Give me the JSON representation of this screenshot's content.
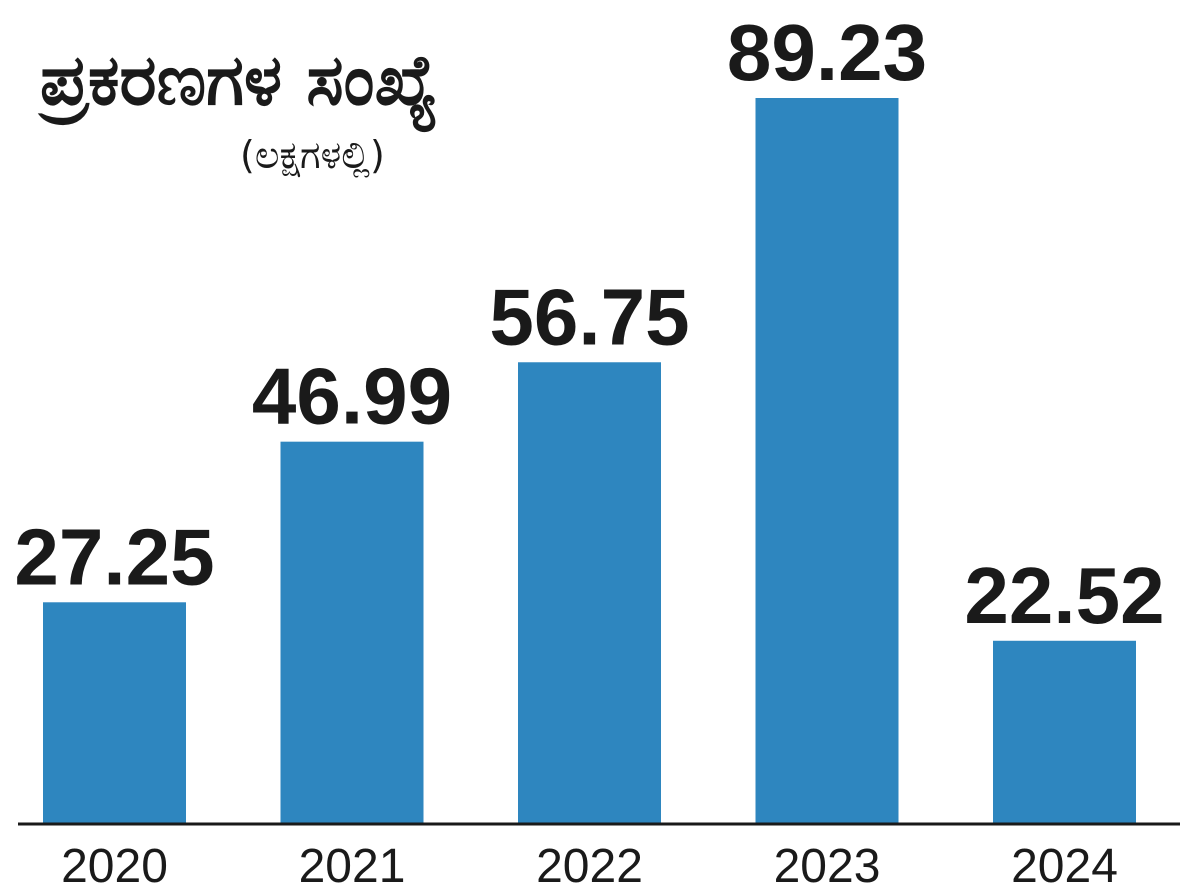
{
  "chart_data": {
    "type": "bar",
    "title": "ಪ್ರಕರಣಗಳ ಸಂಖ್ಯೆ",
    "subtitle": "(ಲಕ್ಷಗಳಲ್ಲಿ)",
    "categories": [
      "2020",
      "2021",
      "2022",
      "2023",
      "2024"
    ],
    "values": [
      27.25,
      46.99,
      56.75,
      89.23,
      22.52
    ],
    "value_labels": [
      "27.25",
      "46.99",
      "56.75",
      "89.23",
      "22.52"
    ],
    "ylim": [
      0,
      95
    ],
    "grid": false,
    "legend": "none"
  },
  "colors": {
    "bar": "#2e86bf",
    "axis": "#1a1a1a",
    "text": "#1a1a1a",
    "background": "#ffffff"
  }
}
